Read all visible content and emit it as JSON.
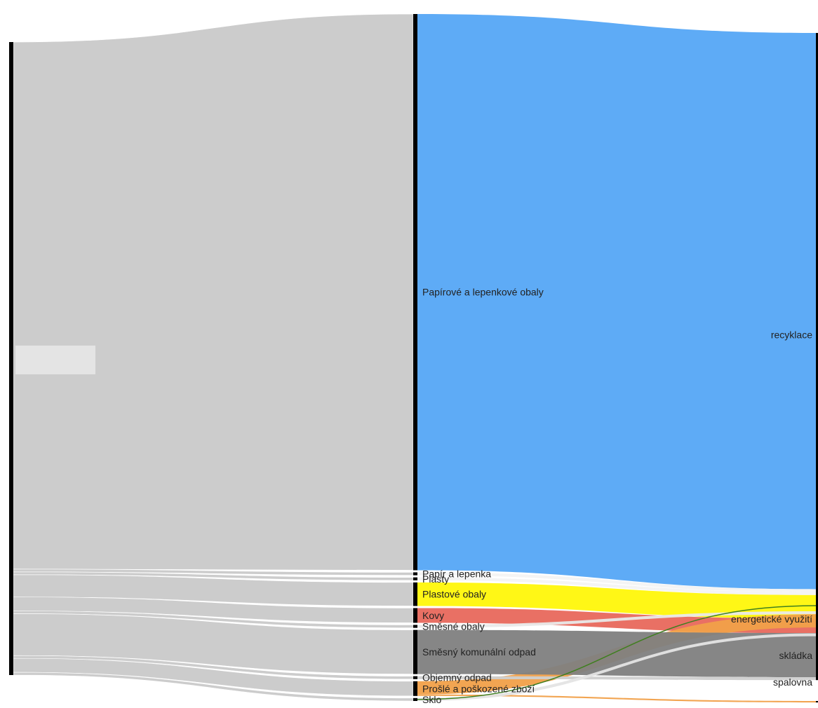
{
  "chart_data": {
    "type": "sankey",
    "title": "",
    "sources": [
      ""
    ],
    "categories": [
      {
        "name": "Papírové a lepenkové obaly",
        "value": 756,
        "color": "#55a6f6"
      },
      {
        "name": "Papír a lepenka",
        "value": 4,
        "color": "#f3f3f3"
      },
      {
        "name": "Plasty",
        "value": 4,
        "color": "#f3f3f3"
      },
      {
        "name": "Plastové obaly",
        "value": 32,
        "color": "#fff70a"
      },
      {
        "name": "Kovy",
        "value": 20,
        "color": "#e8685c"
      },
      {
        "name": "Směsné obaly",
        "value": 4,
        "color": "#e9e9e9"
      },
      {
        "name": "Směsný komunální odpad",
        "value": 60,
        "color": "#7f7f7f"
      },
      {
        "name": "Objemný odpad",
        "value": 4,
        "color": "#cfcfcf"
      },
      {
        "name": "Prošlé a poškozené zboží",
        "value": 20,
        "color": "#f1a049"
      },
      {
        "name": "Sklo",
        "value": 4,
        "color": "#e4e4e4"
      }
    ],
    "targets": [
      {
        "name": "recyklace"
      },
      {
        "name": "energetické využití"
      },
      {
        "name": "skládka"
      },
      {
        "name": "spalovna"
      }
    ],
    "flows": [
      {
        "from": "Papírové a lepenkové obaly",
        "to": "recyklace",
        "value": 756
      },
      {
        "from": "Papír a lepenka",
        "to": "recyklace",
        "value": 4
      },
      {
        "from": "Plasty",
        "to": "recyklace",
        "value": 4
      },
      {
        "from": "Plastové obaly",
        "to": "recyklace",
        "value": 32
      },
      {
        "from": "Kovy",
        "to": "recyklace",
        "value": 20
      },
      {
        "from": "Směsné obaly",
        "to": "energetické využití",
        "value": 4
      },
      {
        "from": "Prošlé a poškozené zboží",
        "to": "energetické využití",
        "value": 18
      },
      {
        "from": "Směsný komunální odpad",
        "to": "skládka",
        "value": 60
      },
      {
        "from": "Objemný odpad",
        "to": "skládka",
        "value": 4
      },
      {
        "from": "Prošlé a poškozené zboží",
        "to": "spalovna",
        "value": 2
      },
      {
        "from": "Sklo",
        "to": "recyklace",
        "value": 4
      }
    ]
  }
}
